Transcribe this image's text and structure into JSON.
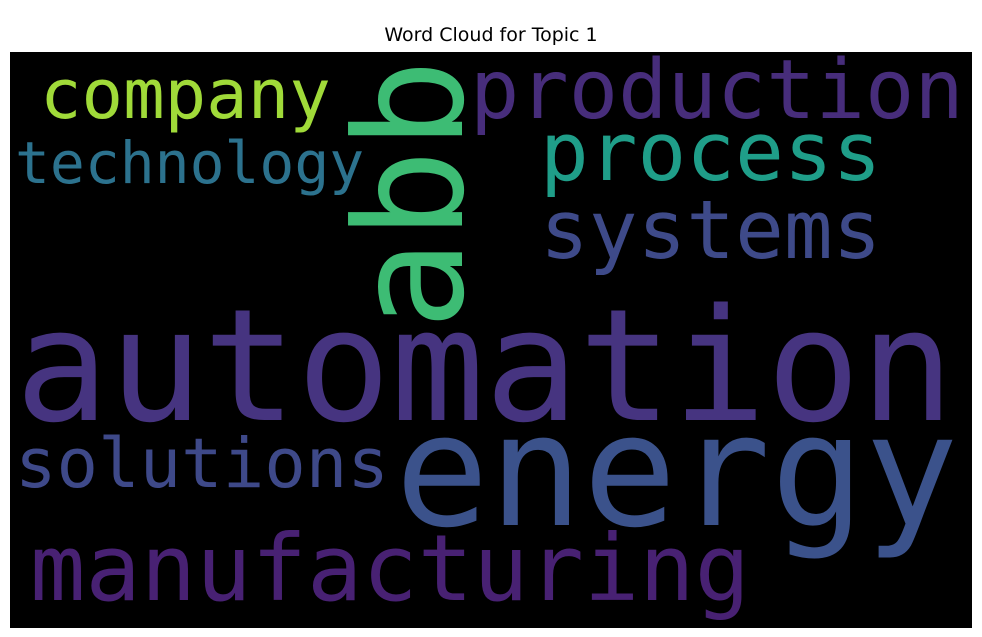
{
  "chart_data": {
    "type": "wordcloud",
    "title": "Word Cloud for Topic 1",
    "background": "#000000",
    "words": [
      {
        "text": "automation",
        "color": "#463480"
      },
      {
        "text": "energy",
        "color": "#3b528b"
      },
      {
        "text": "abb",
        "color": "#3dbc74",
        "rotated": true
      },
      {
        "text": "production",
        "color": "#472d7b"
      },
      {
        "text": "company",
        "color": "#a0da39"
      },
      {
        "text": "process",
        "color": "#1f9e89"
      },
      {
        "text": "technology",
        "color": "#2c728e"
      },
      {
        "text": "systems",
        "color": "#3e4a89"
      },
      {
        "text": "solutions",
        "color": "#3e4989"
      },
      {
        "text": "manufacturing",
        "color": "#482173"
      }
    ]
  }
}
